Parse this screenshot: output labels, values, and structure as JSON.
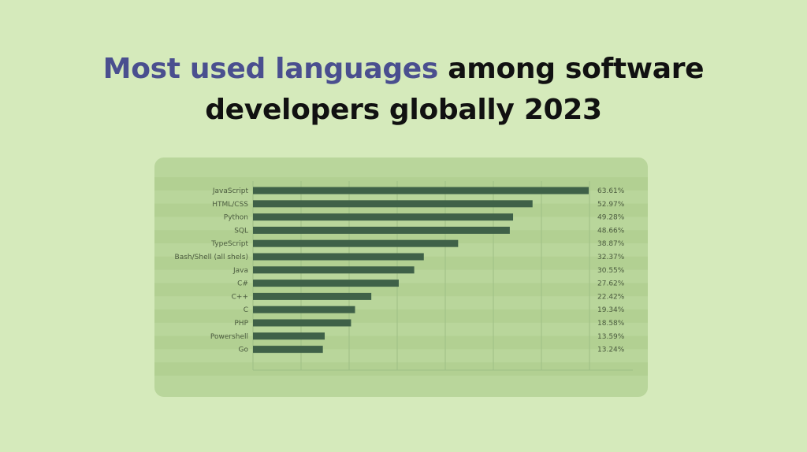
{
  "title": {
    "highlight": "Most used languages",
    "rest_line1": " among software",
    "line2": "developers globally 2023"
  },
  "colors": {
    "background": "#d5eabb",
    "panel": "#b9d69b",
    "panel_stripe": "#b2d092",
    "bar": "#3f6148",
    "title_highlight": "#4a4f8f",
    "title_text": "#111111"
  },
  "chart_data": {
    "type": "bar",
    "orientation": "horizontal",
    "categories": [
      "JavaScript",
      "HTML/CSS",
      "Python",
      "SQL",
      "TypeScript",
      "Bash/Shell (all shels)",
      "Java",
      "C#",
      "C++",
      "C",
      "PHP",
      "Powershell",
      "Go"
    ],
    "values": [
      63.61,
      52.97,
      49.28,
      48.66,
      38.87,
      32.37,
      30.55,
      27.62,
      22.42,
      19.34,
      18.58,
      13.59,
      13.24
    ],
    "value_labels": [
      "63.61%",
      "52.97%",
      "49.28%",
      "48.66%",
      "38.87%",
      "32.37%",
      "30.55%",
      "27.62%",
      "22.42%",
      "19.34%",
      "18.58%",
      "13.59%",
      "13.24%"
    ],
    "xlim": [
      0,
      72
    ],
    "grid": true,
    "title": "Most used languages among software developers globally 2023",
    "xlabel": "",
    "ylabel": ""
  }
}
